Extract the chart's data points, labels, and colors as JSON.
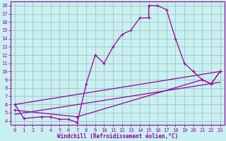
{
  "xlabel": "Windchill (Refroidissement éolien,°C)",
  "background_color": "#c8f0f0",
  "line_color": "#990099",
  "xlim": [
    -0.5,
    23.5
  ],
  "ylim": [
    3.5,
    18.5
  ],
  "xticks": [
    0,
    1,
    2,
    3,
    4,
    5,
    6,
    7,
    8,
    9,
    10,
    11,
    12,
    13,
    14,
    15,
    16,
    17,
    18,
    19,
    20,
    21,
    22,
    23
  ],
  "yticks": [
    4,
    5,
    6,
    7,
    8,
    9,
    10,
    11,
    12,
    13,
    14,
    15,
    16,
    17,
    18
  ],
  "main_curve": [
    [
      0,
      6.0
    ],
    [
      1,
      4.3
    ],
    [
      3,
      4.5
    ],
    [
      4,
      4.5
    ],
    [
      5,
      4.2
    ],
    [
      6,
      4.2
    ],
    [
      7,
      3.8
    ],
    [
      8,
      8.5
    ],
    [
      9,
      12.0
    ],
    [
      10,
      11.0
    ],
    [
      11,
      13.0
    ],
    [
      12,
      14.5
    ],
    [
      13,
      15.0
    ],
    [
      14,
      16.5
    ],
    [
      15,
      16.5
    ],
    [
      15,
      18.0
    ],
    [
      16,
      18.0
    ],
    [
      17,
      17.5
    ],
    [
      18,
      14.0
    ],
    [
      19,
      11.0
    ],
    [
      20,
      10.0
    ],
    [
      21,
      9.0
    ],
    [
      22,
      8.5
    ],
    [
      23,
      10.0
    ]
  ],
  "line2": [
    [
      0,
      6.0
    ],
    [
      23,
      10.0
    ]
  ],
  "line3": [
    [
      0,
      5.3
    ],
    [
      7,
      4.5
    ],
    [
      21,
      9.0
    ],
    [
      22,
      8.5
    ],
    [
      23,
      10.0
    ]
  ],
  "line4": [
    [
      0,
      4.8
    ],
    [
      23,
      8.7
    ]
  ]
}
